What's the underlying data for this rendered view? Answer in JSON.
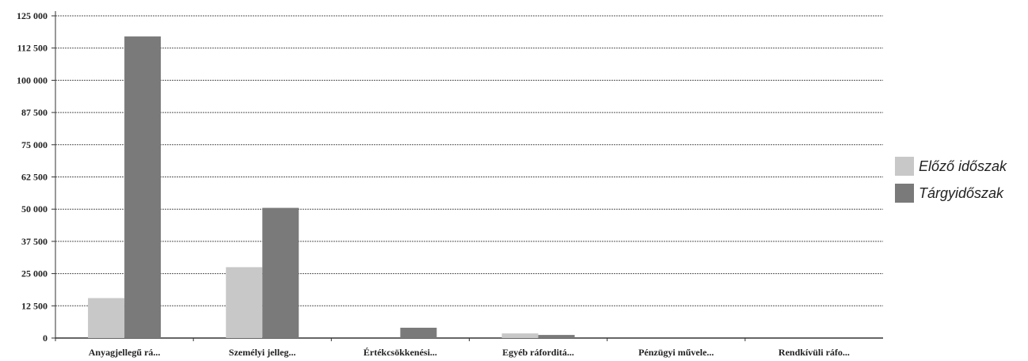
{
  "chart_data": {
    "type": "bar",
    "title": "",
    "xlabel": "",
    "ylabel": "",
    "ylim": [
      0,
      125000
    ],
    "yticks": [
      0,
      12500,
      25000,
      37500,
      50000,
      62500,
      75000,
      87500,
      100000,
      112500,
      125000
    ],
    "ytick_labels": [
      "0",
      "12 500",
      "25 000",
      "37 500",
      "50 000",
      "62 500",
      "75 000",
      "87 500",
      "100 000",
      "112 500",
      "125 000"
    ],
    "categories": [
      "Anyagjellegű rá...",
      "Személyi jelleg...",
      "Értékcsökkenési...",
      "Egyéb ráforditá...",
      "Pénzügyi művele...",
      "Rendkívüli ráfo..."
    ],
    "series": [
      {
        "name": "Előző időszak",
        "color": "#c8c8c8",
        "values": [
          15500,
          27500,
          0,
          1800,
          0,
          0
        ]
      },
      {
        "name": "Tárgyidőszak",
        "color": "#7a7a7a",
        "values": [
          117000,
          50500,
          4000,
          1200,
          0,
          0
        ]
      }
    ],
    "grid": true,
    "legend_position": "right"
  }
}
